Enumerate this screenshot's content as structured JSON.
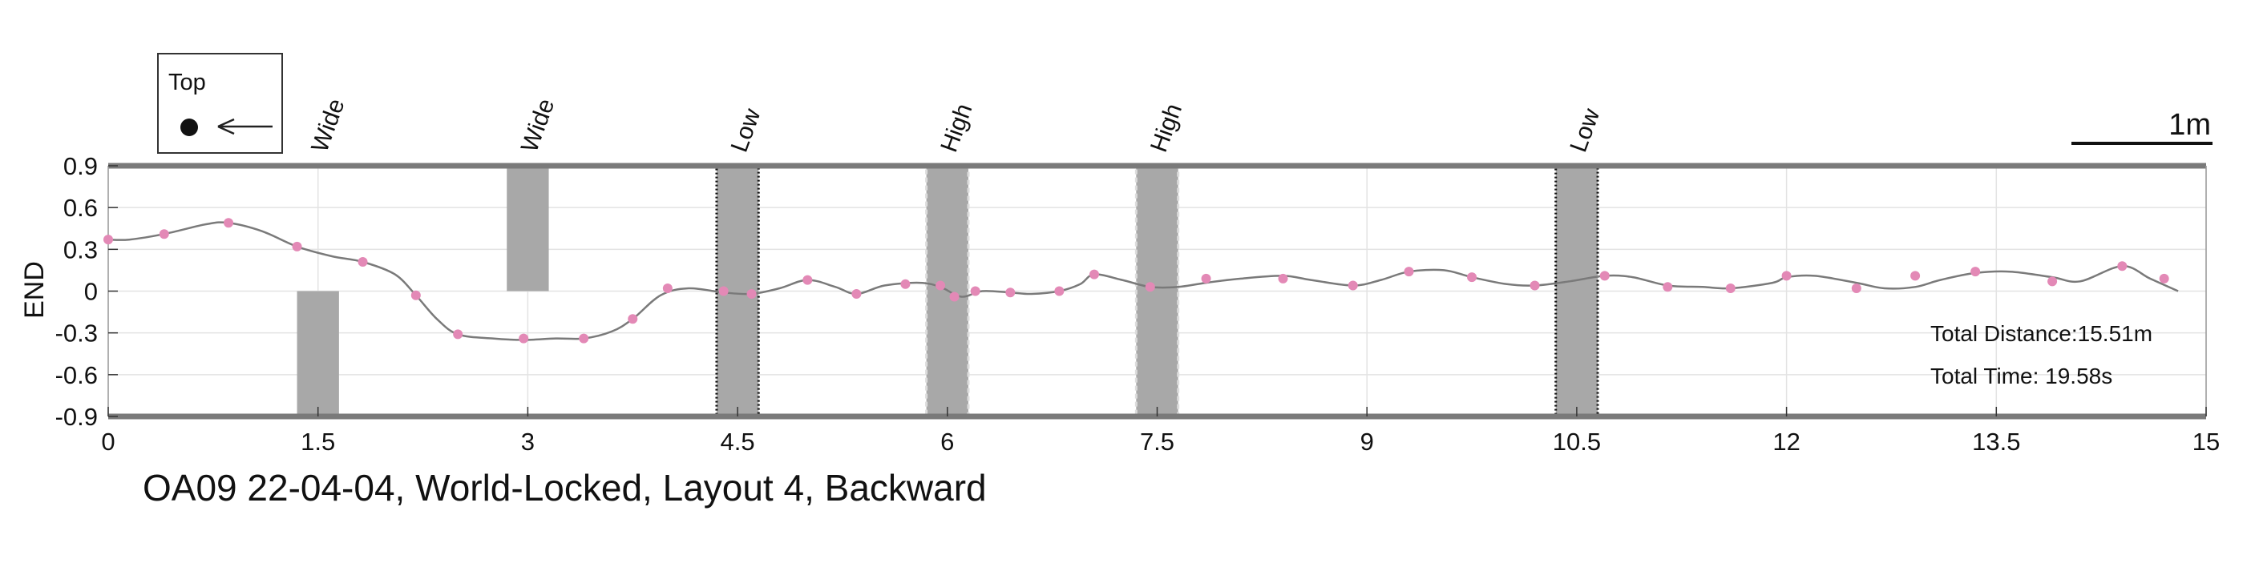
{
  "chart_data": {
    "type": "line",
    "title": "OA09 22-04-04, World-Locked, Layout 4, Backward",
    "xlabel": "",
    "ylabel": "END",
    "xlim": [
      0,
      15
    ],
    "ylim": [
      -0.9,
      0.9
    ],
    "x_ticks": [
      "0",
      "1.5",
      "3",
      "4.5",
      "6",
      "7.5",
      "9",
      "10.5",
      "12",
      "13.5",
      "15"
    ],
    "y_ticks": [
      "0.9",
      "0.6",
      "0.3",
      "0",
      "-0.3",
      "-0.6",
      "-0.9"
    ],
    "grid": true,
    "legend": {
      "title": "Top",
      "position": "top-left",
      "marker": "filled-circle",
      "arrow_direction": "left"
    },
    "scale_bar_label": "1m",
    "annotations": [
      "Total Distance:15.51m",
      "Total Time: 19.58s"
    ],
    "obstacles": [
      {
        "label": "Wide",
        "x_range": [
          1.35,
          1.65
        ],
        "y_range": [
          -0.9,
          0
        ],
        "style": "plain"
      },
      {
        "label": "Wide",
        "x_range": [
          2.85,
          3.15
        ],
        "y_range": [
          0,
          0.9
        ],
        "style": "plain"
      },
      {
        "label": "Low",
        "x_range": [
          4.35,
          4.65
        ],
        "y_range": [
          -0.9,
          0.9
        ],
        "style": "dotted-black"
      },
      {
        "label": "High",
        "x_range": [
          5.85,
          6.15
        ],
        "y_range": [
          -0.9,
          0.9
        ],
        "style": "dashed-light"
      },
      {
        "label": "High",
        "x_range": [
          7.35,
          7.65
        ],
        "y_range": [
          -0.9,
          0.9
        ],
        "style": "dashed-light"
      },
      {
        "label": "Low",
        "x_range": [
          10.35,
          10.65
        ],
        "y_range": [
          -0.9,
          0.9
        ],
        "style": "dotted-black"
      }
    ],
    "series": [
      {
        "path_x": [
          0,
          0.15,
          0.4,
          0.7,
          0.86,
          1.1,
          1.35,
          1.6,
          1.82,
          2.05,
          2.2,
          2.35,
          2.5,
          2.75,
          2.97,
          3.2,
          3.4,
          3.6,
          3.75,
          3.95,
          4.15,
          4.4,
          4.6,
          4.8,
          5.0,
          5.2,
          5.35,
          5.55,
          5.8,
          5.95,
          6.1,
          6.25,
          6.45,
          6.6,
          6.8,
          6.95,
          7.05,
          7.25,
          7.45,
          7.65,
          7.85,
          8.1,
          8.4,
          8.6,
          8.9,
          9.1,
          9.3,
          9.55,
          9.75,
          10.0,
          10.2,
          10.45,
          10.7,
          10.9,
          11.15,
          11.4,
          11.6,
          11.9,
          12.0,
          12.2,
          12.5,
          12.7,
          12.92,
          13.1,
          13.35,
          13.6,
          13.9,
          14.1,
          14.4,
          14.6,
          14.8
        ],
        "path_y": [
          0.37,
          0.37,
          0.41,
          0.48,
          0.49,
          0.43,
          0.32,
          0.25,
          0.21,
          0.12,
          -0.03,
          -0.2,
          -0.31,
          -0.34,
          -0.35,
          -0.34,
          -0.34,
          -0.29,
          -0.2,
          -0.03,
          0.02,
          -0.01,
          -0.02,
          0.02,
          0.08,
          0.03,
          -0.02,
          0.04,
          0.06,
          0.03,
          -0.04,
          0.0,
          -0.01,
          -0.02,
          0.0,
          0.05,
          0.12,
          0.08,
          0.03,
          0.03,
          0.06,
          0.09,
          0.11,
          0.08,
          0.04,
          0.08,
          0.14,
          0.15,
          0.1,
          0.05,
          0.04,
          0.07,
          0.11,
          0.1,
          0.04,
          0.03,
          0.02,
          0.06,
          0.1,
          0.11,
          0.06,
          0.02,
          0.03,
          0.08,
          0.13,
          0.14,
          0.1,
          0.07,
          0.18,
          0.09,
          0.0
        ],
        "points_x": [
          0,
          0.4,
          0.86,
          1.35,
          1.82,
          2.2,
          2.5,
          2.97,
          3.4,
          3.75,
          4.0,
          4.4,
          4.6,
          5.0,
          5.35,
          5.7,
          5.95,
          6.05,
          6.2,
          6.45,
          6.8,
          7.05,
          7.45,
          7.85,
          8.4,
          8.9,
          9.3,
          9.75,
          10.2,
          10.7,
          11.15,
          11.6,
          12.0,
          12.5,
          12.92,
          13.35,
          13.9,
          14.4,
          14.7
        ],
        "points_y": [
          0.37,
          0.41,
          0.49,
          0.32,
          0.21,
          -0.03,
          -0.31,
          -0.34,
          -0.34,
          -0.2,
          0.02,
          0.0,
          -0.02,
          0.08,
          -0.02,
          0.05,
          0.04,
          -0.04,
          0.0,
          -0.01,
          0.0,
          0.12,
          0.03,
          0.09,
          0.09,
          0.04,
          0.14,
          0.1,
          0.04,
          0.11,
          0.03,
          0.02,
          0.11,
          0.02,
          0.11,
          0.14,
          0.07,
          0.18,
          0.09
        ],
        "line_color": "#7a7a7a",
        "point_color": "#e389b6"
      }
    ],
    "colors": {
      "obstacle_fill": "#a8a8a8",
      "frame": "#7a7a7a",
      "grid": "#e3e3e3",
      "line": "#7a7a7a",
      "point": "#e389b6"
    }
  }
}
